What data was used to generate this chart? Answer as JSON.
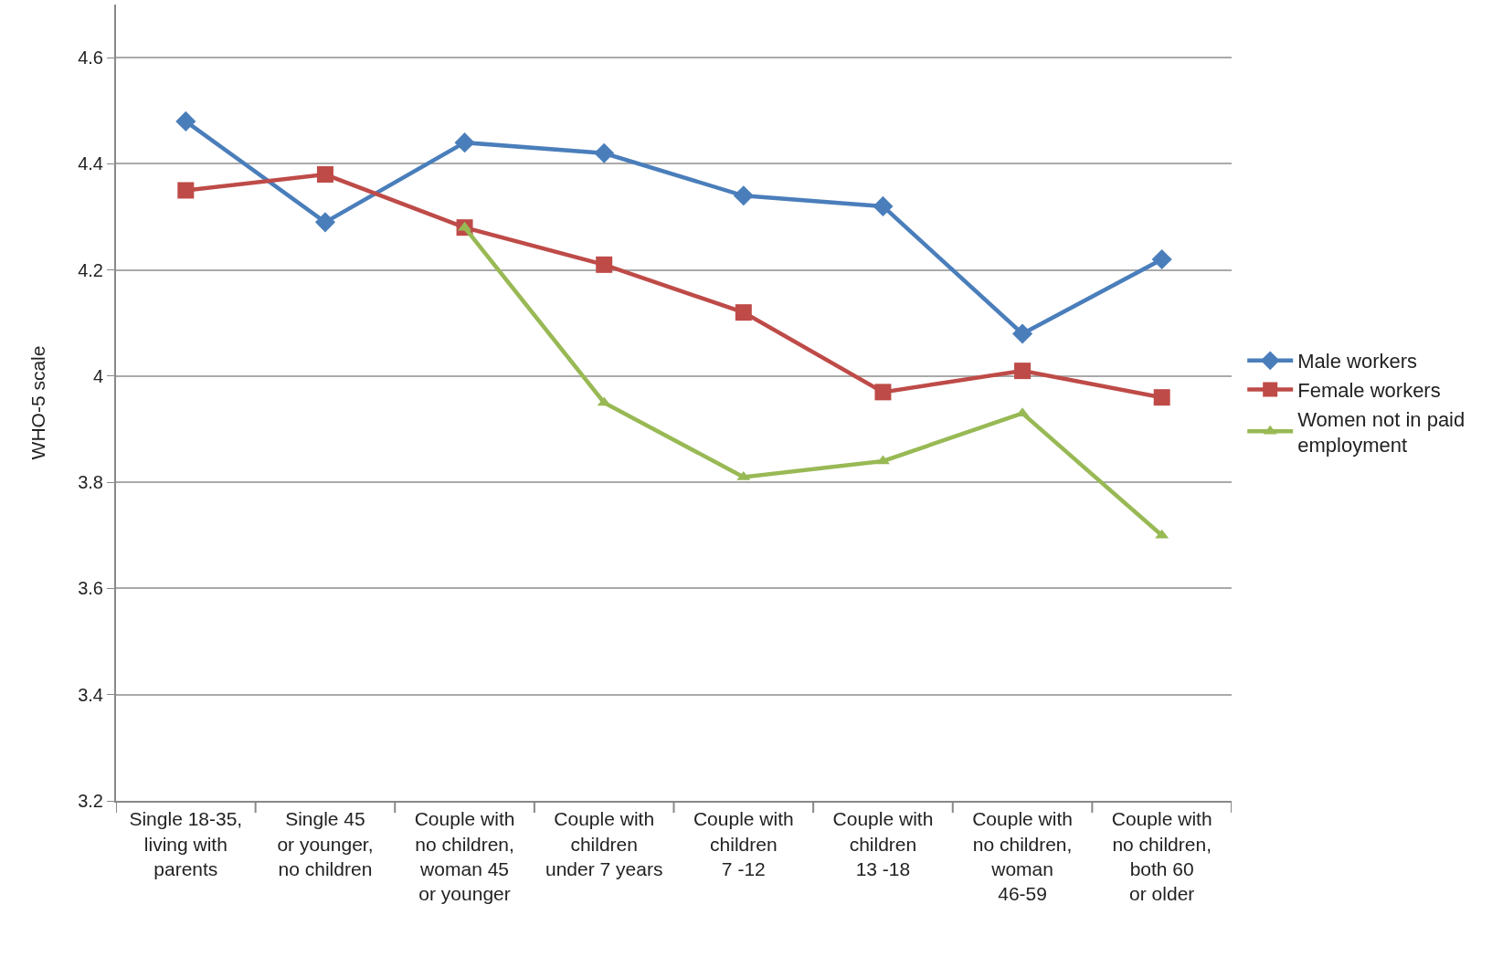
{
  "chart_data": {
    "type": "line",
    "ylabel": "WHO-5 scale",
    "categories": [
      "Single 18-35,\nliving with\nparents",
      "Single 45\nor younger,\nno children",
      "Couple with\nno children,\nwoman 45\nor younger",
      "Couple with\nchildren\nunder 7 years",
      "Couple with\nchildren\n7 -12",
      "Couple with\nchildren\n13 -18",
      "Couple with\nno children,\nwoman\n46-59",
      "Couple with\nno children,\nboth 60\nor older"
    ],
    "series": [
      {
        "name": "Male workers",
        "color": "#4a7ebb",
        "marker": "diamond",
        "values": [
          4.48,
          4.29,
          4.44,
          4.42,
          4.34,
          4.32,
          4.08,
          4.22
        ]
      },
      {
        "name": "Female workers",
        "color": "#be4b48",
        "marker": "square",
        "values": [
          4.35,
          4.38,
          4.28,
          4.21,
          4.12,
          3.97,
          4.01,
          3.96
        ]
      },
      {
        "name": "Women not in paid\nemployment",
        "color": "#98b954",
        "marker": "triangle",
        "values": [
          null,
          null,
          4.28,
          3.95,
          3.81,
          3.84,
          3.93,
          3.7
        ]
      }
    ],
    "ylim": [
      3.2,
      4.7
    ],
    "yticks": [
      3.2,
      3.4,
      3.6,
      3.8,
      {
        "value": 4,
        "label": "4"
      },
      4.2,
      4.4,
      4.6
    ],
    "grid": "y",
    "legend": "right",
    "line_style": "solid"
  }
}
